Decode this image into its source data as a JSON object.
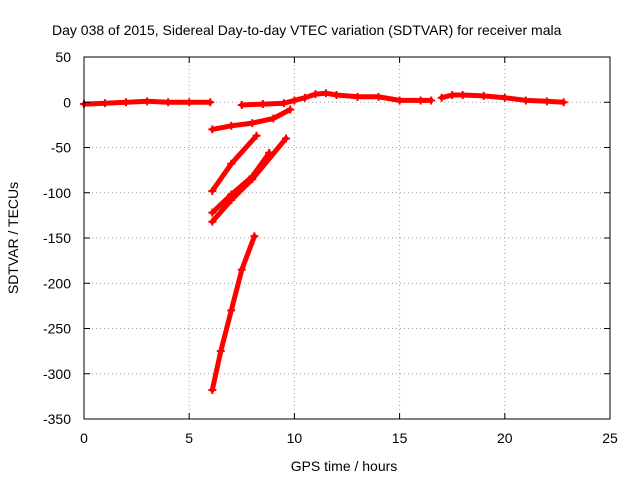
{
  "chart_data": {
    "type": "line",
    "title": "Day 038 of 2015, Sidereal Day-to-day VTEC variation (SDTVAR) for receiver mala",
    "xlabel": "GPS time / hours",
    "ylabel": "SDTVAR / TECUs",
    "xlim": [
      0,
      25
    ],
    "ylim": [
      -350,
      50
    ],
    "x_ticks": [
      0,
      5,
      10,
      15,
      20,
      25
    ],
    "y_ticks": [
      50,
      0,
      -50,
      -100,
      -150,
      -200,
      -250,
      -300,
      -350
    ],
    "grid": true,
    "legend": "none",
    "series_color": "#ff0000",
    "series": [
      {
        "x": [
          0.0,
          1.0,
          2.0,
          3.0,
          4.0,
          5.0,
          6.0
        ],
        "y": [
          -2,
          -1,
          0,
          1,
          0,
          0,
          0
        ]
      },
      {
        "x": [
          7.5,
          8.5,
          9.5,
          10.0,
          10.5,
          11.0,
          11.5,
          12.0,
          13.0,
          14.0,
          15.0,
          16.0,
          16.5
        ],
        "y": [
          -3,
          -2,
          -1,
          2,
          5,
          9,
          10,
          8,
          6,
          6,
          2,
          2,
          2
        ]
      },
      {
        "x": [
          17.0,
          17.5,
          18.0,
          19.0,
          20.0,
          21.0,
          22.0,
          22.8
        ],
        "y": [
          5,
          8,
          8,
          7,
          5,
          2,
          1,
          0
        ]
      },
      {
        "x": [
          6.1,
          7.0,
          8.0,
          9.0,
          9.8
        ],
        "y": [
          -30,
          -26,
          -23,
          -18,
          -8
        ]
      },
      {
        "x": [
          6.1,
          7.0,
          8.2
        ],
        "y": [
          -98,
          -68,
          -37
        ]
      },
      {
        "x": [
          6.1,
          7.0,
          8.0,
          8.8
        ],
        "y": [
          -122,
          -102,
          -82,
          -56
        ]
      },
      {
        "x": [
          6.1,
          7.0,
          8.0,
          9.6
        ],
        "y": [
          -132,
          -108,
          -85,
          -40
        ]
      },
      {
        "x": [
          6.1,
          6.5,
          7.0,
          7.5,
          8.1
        ],
        "y": [
          -318,
          -275,
          -230,
          -185,
          -148
        ]
      }
    ]
  }
}
